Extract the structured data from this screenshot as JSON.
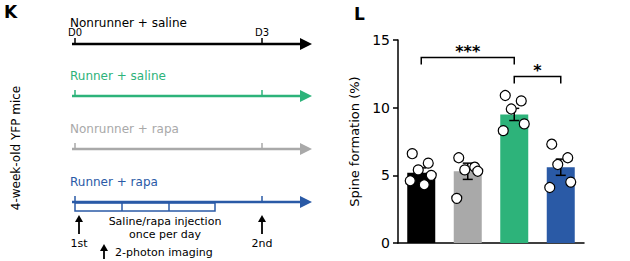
{
  "diagram": {
    "label": "K",
    "side_label": "4-week-old YFP mice",
    "day_marks": [
      "D0",
      "D3"
    ],
    "groups": [
      {
        "name": "Nonrunner + saline",
        "color": "#000000"
      },
      {
        "name": "Runner + saline",
        "color": "#2db37a"
      },
      {
        "name": "Nonrunner + rapa",
        "color": "#a9a9a9"
      },
      {
        "name": "Runner + rapa",
        "color": "#2a5aa6"
      }
    ],
    "injection_label": [
      "Saline/rapa injection",
      "once per day"
    ],
    "imaging_marks": [
      "1st",
      "2nd"
    ],
    "arrow_legend": "2-photon imaging"
  },
  "chart_data": {
    "type": "bar",
    "title": "L",
    "ylabel": "Spine formation (%)",
    "categories": [
      null,
      null,
      null,
      null
    ],
    "values": [
      5.2,
      5.3,
      9.5,
      5.6
    ],
    "errors": [
      0.35,
      0.6,
      0.45,
      0.6
    ],
    "points": [
      [
        6.6,
        5.9,
        5.4,
        5.0,
        4.6,
        4.3
      ],
      [
        6.3,
        5.6,
        5.4,
        5.3,
        3.3
      ],
      [
        10.9,
        10.5,
        9.9,
        8.8,
        8.3
      ],
      [
        7.3,
        6.3,
        5.8,
        4.5,
        4.1
      ]
    ],
    "colors": [
      "#000000",
      "#a9a9a9",
      "#2db37a",
      "#2a5aa6"
    ],
    "ylim": [
      0,
      15
    ],
    "yticks": [
      0,
      5,
      10,
      15
    ],
    "annotations": [
      {
        "from": 0,
        "to": 2,
        "y": 13.7,
        "label": "***"
      },
      {
        "from": 2,
        "to": 3,
        "y": 12.3,
        "label": "*"
      }
    ],
    "tick_labels": "y",
    "grid": false
  }
}
